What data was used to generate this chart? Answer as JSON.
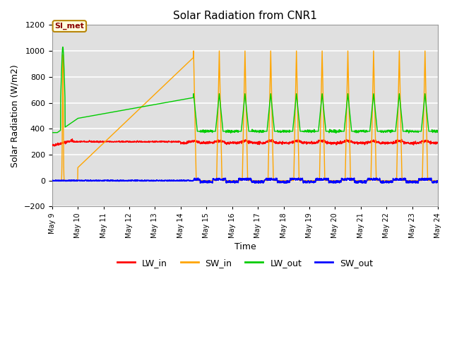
{
  "title": "Solar Radiation from CNR1",
  "xlabel": "Time",
  "ylabel": "Solar Radiation (W/m2)",
  "ylim": [
    -200,
    1200
  ],
  "yticks": [
    -200,
    0,
    200,
    400,
    600,
    800,
    1000,
    1200
  ],
  "xtick_labels": [
    "May 9",
    "May 10",
    "May 11",
    "May 12",
    "May 13",
    "May 14",
    "May 15",
    "May 16",
    "May 17",
    "May 18",
    "May 19",
    "May 20",
    "May 21",
    "May 22",
    "May 23",
    "May 24"
  ],
  "annotation_text": "SI_met",
  "annotation_text_color": "#8B0000",
  "annotation_box_color": "#FFFFE0",
  "annotation_border_color": "#B8860B",
  "colors": {
    "LW_in": "#FF0000",
    "SW_in": "#FFA500",
    "LW_out": "#00CC00",
    "SW_out": "#0000FF"
  },
  "background_color": "#E0E0E0",
  "grid_color": "#FFFFFF",
  "linewidth": 1.0
}
